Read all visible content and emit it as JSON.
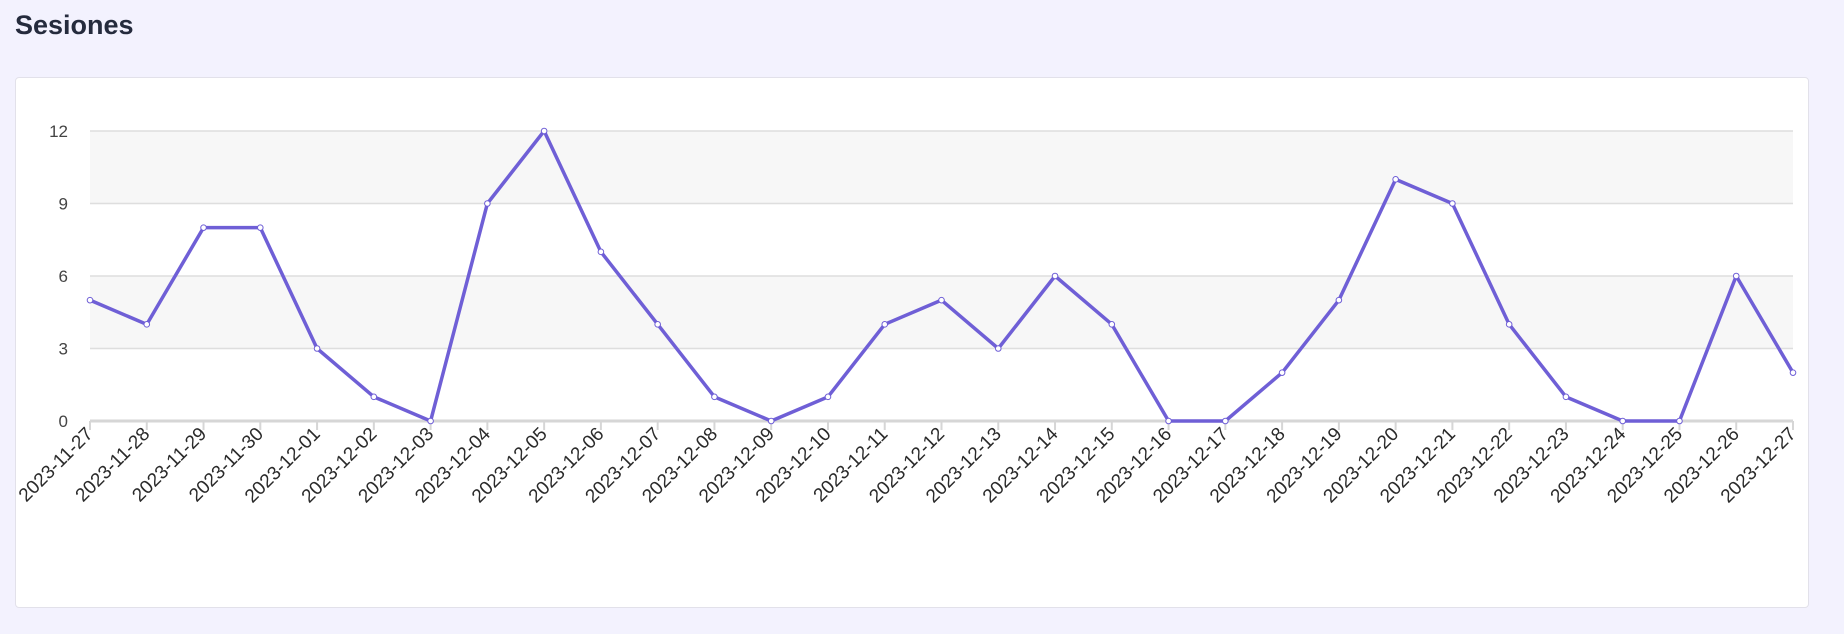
{
  "page": {
    "title": "Sesiones"
  },
  "colors": {
    "page_background": "#f3f2fe",
    "line": "#6f5fd6",
    "band": "#f7f7f7",
    "grid": "#dedede",
    "axis": "#d6d6d6"
  },
  "chart_data": {
    "type": "line",
    "title": "",
    "xlabel": "",
    "ylabel": "",
    "ylim": [
      0,
      12
    ],
    "yticks": [
      0,
      3,
      6,
      9,
      12
    ],
    "grid": true,
    "legend": "none",
    "categories": [
      "2023-11-27",
      "2023-11-28",
      "2023-11-29",
      "2023-11-30",
      "2023-12-01",
      "2023-12-02",
      "2023-12-03",
      "2023-12-04",
      "2023-12-05",
      "2023-12-06",
      "2023-12-07",
      "2023-12-08",
      "2023-12-09",
      "2023-12-10",
      "2023-12-11",
      "2023-12-12",
      "2023-12-13",
      "2023-12-14",
      "2023-12-15",
      "2023-12-16",
      "2023-12-17",
      "2023-12-18",
      "2023-12-19",
      "2023-12-20",
      "2023-12-21",
      "2023-12-22",
      "2023-12-23",
      "2023-12-24",
      "2023-12-25",
      "2023-12-26",
      "2023-12-27"
    ],
    "series": [
      {
        "values": [
          5,
          4,
          8,
          8,
          3,
          1,
          0,
          9,
          12,
          7,
          4,
          1,
          0,
          1,
          4,
          5,
          3,
          6,
          4,
          0,
          0,
          2,
          5,
          10,
          9,
          4,
          1,
          0,
          0,
          6,
          2
        ]
      }
    ]
  }
}
